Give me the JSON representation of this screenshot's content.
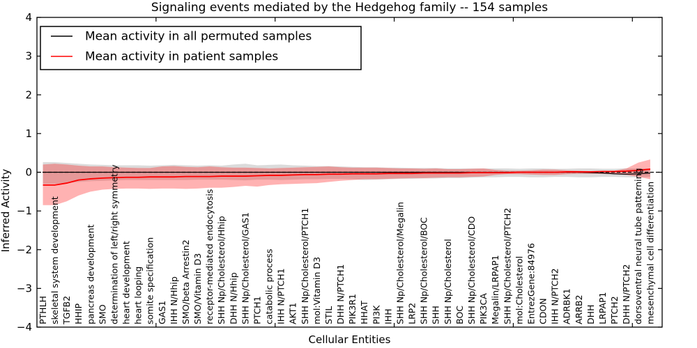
{
  "figure": {
    "title": "Signaling events mediated by the Hedgehog family -- 154 samples",
    "xlabel": "Cellular Entities",
    "ylabel": "Inferred Activity"
  },
  "chart_data": {
    "type": "line",
    "title": "Signaling events mediated by the Hedgehog family -- 154 samples",
    "xlabel": "Cellular Entities",
    "ylabel": "Inferred Activity",
    "ylim": [
      -4,
      4
    ],
    "yticks": [
      4,
      3,
      2,
      1,
      0,
      -1,
      -2,
      -3,
      -4
    ],
    "xticks_numeric": [
      10,
      20,
      30,
      40,
      50
    ],
    "grid": false,
    "legend": {
      "position": "upper left",
      "entries": [
        {
          "label": "Mean activity in all permuted samples",
          "color": "#000000"
        },
        {
          "label": "Mean activity in patient samples",
          "color": "#ff0000"
        }
      ]
    },
    "zero_line": {
      "value": 0,
      "style": "dashed",
      "color": "#000000"
    },
    "categories": [
      "PTHLH",
      "skeletal system development",
      "TGFB2",
      "HHIP",
      "pancreas development",
      "SMO",
      "determination of left/right symmetry",
      "heart development",
      "heart looping",
      "somite specification",
      "GAS1",
      "IHH N/Hhip",
      "SMO/beta Arrestin2",
      "SMO/Vitamin D3",
      "receptor-mediated endocytosis",
      "SHH Np/Cholesterol/Hhip",
      "DHH N/Hhip",
      "SHH Np/Cholesterol/GAS1",
      "PTCH1",
      "catabolic process",
      "IHH N/PTCH1",
      "AKT1",
      "SHH Np/Cholesterol/PTCH1",
      "mol:Vitamin D3",
      "STIL",
      "DHH N/PTCH1",
      "PIK3R1",
      "HHAT",
      "PI3K",
      "IHH",
      "SHH Np/Cholesterol/Megalin",
      "LRP2",
      "SHH Np/Cholesterol/BOC",
      "SHH",
      "SHH Np/Cholesterol",
      "BOC",
      "SHH Np/Cholesterol/CDO",
      "PIK3CA",
      "Megalin/LRPAP1",
      "SHH Np/Cholesterol/PTCH2",
      "mol:Cholesterol",
      "EntrezGene:84976",
      "CDON",
      "IHH N/PTCH2",
      "ADRBK1",
      "ARRB2",
      "DHH",
      "LRPAP1",
      "PTCH2",
      "DHH N/PTCH2",
      "dorsoventral neural tube patterning",
      "mesenchymal cell differentiation"
    ],
    "series": [
      {
        "name": "Mean activity in all permuted samples",
        "color": "#000000",
        "values": [
          0,
          0,
          0,
          0,
          0,
          0,
          0,
          0,
          0,
          0,
          0,
          0,
          0,
          0,
          0,
          0,
          0,
          0,
          0,
          0,
          0,
          0,
          0,
          0,
          0,
          0,
          0,
          0,
          0,
          0,
          0,
          0,
          0,
          0,
          0,
          0,
          0,
          0,
          0,
          0,
          0,
          0,
          0,
          0,
          0,
          0,
          -0.01,
          -0.02,
          -0.04,
          -0.05,
          -0.04,
          -0.02
        ]
      },
      {
        "name": "Mean activity in patient samples",
        "color": "#ff0000",
        "values": [
          -0.33,
          -0.33,
          -0.28,
          -0.2,
          -0.17,
          -0.15,
          -0.14,
          -0.13,
          -0.13,
          -0.12,
          -0.12,
          -0.12,
          -0.11,
          -0.11,
          -0.11,
          -0.1,
          -0.1,
          -0.1,
          -0.09,
          -0.08,
          -0.08,
          -0.07,
          -0.06,
          -0.06,
          -0.05,
          -0.05,
          -0.04,
          -0.04,
          -0.04,
          -0.03,
          -0.03,
          -0.03,
          -0.02,
          -0.02,
          -0.02,
          -0.02,
          -0.01,
          -0.01,
          -0.01,
          -0.01,
          0,
          0,
          0,
          0,
          0.01,
          0.01,
          0.01,
          0.02,
          0.02,
          0.03,
          0.05,
          0.08
        ]
      }
    ],
    "bands": [
      {
        "name": "permuted-samples-range",
        "color": "#999999",
        "opacity": 0.35,
        "upper": [
          0.26,
          0.26,
          0.24,
          0.22,
          0.2,
          0.19,
          0.18,
          0.18,
          0.18,
          0.17,
          0.18,
          0.19,
          0.18,
          0.17,
          0.18,
          0.17,
          0.2,
          0.22,
          0.18,
          0.19,
          0.2,
          0.18,
          0.17,
          0.16,
          0.16,
          0.15,
          0.14,
          0.13,
          0.13,
          0.12,
          0.12,
          0.11,
          0.11,
          0.11,
          0.1,
          0.1,
          0.1,
          0.1,
          0.1,
          0.1,
          0.09,
          0.1,
          0.1,
          0.09,
          0.09,
          0.1,
          0.1,
          0.09,
          0.09,
          0.1,
          0.1,
          0.1
        ],
        "lower": [
          -0.3,
          -0.3,
          -0.28,
          -0.25,
          -0.23,
          -0.22,
          -0.21,
          -0.2,
          -0.2,
          -0.2,
          -0.2,
          -0.2,
          -0.2,
          -0.19,
          -0.19,
          -0.19,
          -0.2,
          -0.21,
          -0.19,
          -0.19,
          -0.2,
          -0.19,
          -0.18,
          -0.18,
          -0.17,
          -0.17,
          -0.18,
          -0.2,
          -0.19,
          -0.18,
          -0.17,
          -0.17,
          -0.16,
          -0.16,
          -0.15,
          -0.15,
          -0.14,
          -0.13,
          -0.13,
          -0.12,
          -0.12,
          -0.13,
          -0.13,
          -0.12,
          -0.12,
          -0.13,
          -0.13,
          -0.12,
          -0.12,
          -0.13,
          -0.13,
          -0.12
        ]
      },
      {
        "name": "patient-samples-range",
        "color": "#ff0000",
        "opacity": 0.3,
        "upper": [
          0.2,
          0.22,
          0.2,
          0.17,
          0.15,
          0.15,
          0.13,
          0.12,
          0.11,
          0.11,
          0.15,
          0.16,
          0.14,
          0.13,
          0.15,
          0.13,
          0.12,
          0.12,
          0.11,
          0.1,
          0.11,
          0.12,
          0.13,
          0.14,
          0.15,
          0.13,
          0.12,
          0.12,
          0.12,
          0.11,
          0.1,
          0.1,
          0.09,
          0.1,
          0.08,
          0.08,
          0.09,
          0.1,
          0.06,
          0.04,
          0.04,
          0.05,
          0.07,
          0.07,
          0.05,
          0.04,
          0.03,
          0.03,
          0.04,
          0.1,
          0.25,
          0.33
        ],
        "lower": [
          -0.85,
          -0.85,
          -0.75,
          -0.6,
          -0.5,
          -0.45,
          -0.43,
          -0.42,
          -0.42,
          -0.43,
          -0.42,
          -0.42,
          -0.43,
          -0.42,
          -0.4,
          -0.4,
          -0.38,
          -0.35,
          -0.37,
          -0.33,
          -0.31,
          -0.3,
          -0.29,
          -0.28,
          -0.25,
          -0.22,
          -0.2,
          -0.18,
          -0.18,
          -0.17,
          -0.16,
          -0.15,
          -0.15,
          -0.14,
          -0.13,
          -0.13,
          -0.12,
          -0.11,
          -0.07,
          -0.05,
          -0.05,
          -0.06,
          -0.07,
          -0.07,
          -0.05,
          -0.04,
          -0.04,
          -0.04,
          -0.05,
          -0.07,
          -0.12,
          -0.18
        ]
      }
    ]
  },
  "colors": {
    "background": "#ffffff",
    "axis": "#000000",
    "patient_line": "#ff0000",
    "permuted_line": "#000000"
  }
}
